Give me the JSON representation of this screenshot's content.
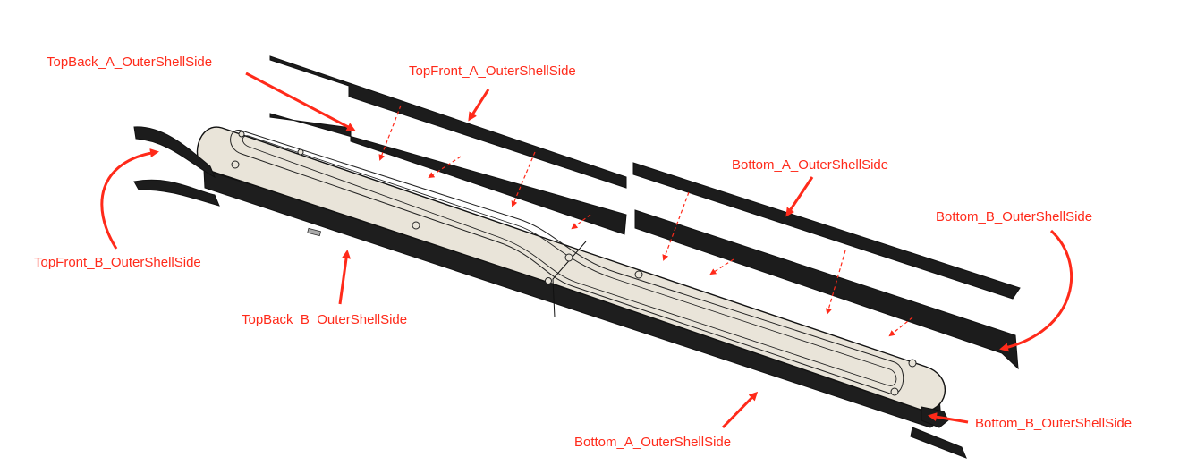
{
  "labels": {
    "top_back_a": "TopBack_A_OuterShellSide",
    "top_front_a": "TopFront_A_OuterShellSide",
    "bottom_a_upper": "Bottom_A_OuterShellSide",
    "bottom_b_right": "Bottom_B_OuterShellSide",
    "top_front_b": "TopFront_B_OuterShellSide",
    "top_back_b": "TopBack_B_OuterShellSide",
    "bottom_a_lower": "Bottom_A_OuterShellSide",
    "bottom_b_lower": "Bottom_B_OuterShellSide"
  },
  "colors": {
    "annotation": "#ff2a1a",
    "part_fill": "#e9e4d9",
    "part_dark": "#1c1c1c",
    "outline": "#111111"
  }
}
